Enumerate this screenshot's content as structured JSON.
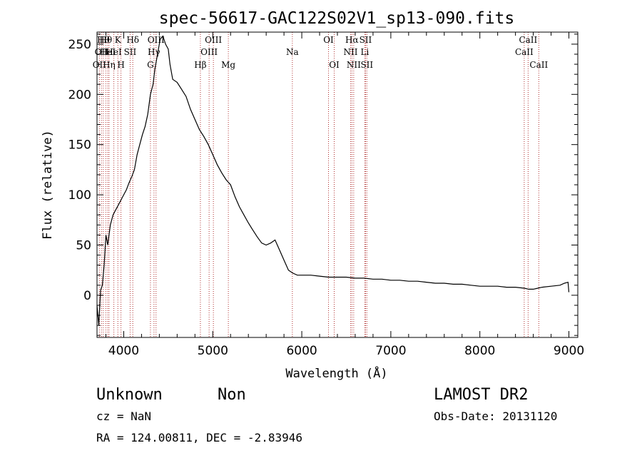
{
  "chart_data": {
    "type": "line",
    "title": "spec-56617-GAC122S02V1_sp13-090.fits",
    "xlabel": "Wavelength (Å)",
    "ylabel": "Flux (relative)",
    "xlim": [
      3700,
      9100
    ],
    "ylim": [
      -42,
      262
    ],
    "xticks": [
      4000,
      5000,
      6000,
      7000,
      8000,
      9000
    ],
    "yticks": [
      0,
      50,
      100,
      150,
      200,
      250
    ],
    "grid": false,
    "series": [
      {
        "x": [
          3700,
          3720,
          3740,
          3760,
          3780,
          3800,
          3820,
          3850,
          3880,
          3910,
          3940,
          3970,
          4000,
          4030,
          4060,
          4090,
          4120,
          4150,
          4180,
          4210,
          4240,
          4270,
          4300,
          4330,
          4350,
          4370,
          4390,
          4410,
          4440,
          4470,
          4500,
          4520,
          4550,
          4600,
          4650,
          4700,
          4750,
          4800,
          4850,
          4900,
          4950,
          5000,
          5050,
          5100,
          5150,
          5200,
          5250,
          5300,
          5350,
          5400,
          5450,
          5500,
          5550,
          5600,
          5650,
          5700,
          5750,
          5800,
          5850,
          5900,
          5950,
          6000,
          6100,
          6200,
          6300,
          6400,
          6500,
          6600,
          6700,
          6800,
          6900,
          7000,
          7100,
          7200,
          7300,
          7400,
          7500,
          7600,
          7700,
          7800,
          7900,
          8000,
          8100,
          8200,
          8300,
          8400,
          8500,
          8550,
          8600,
          8650,
          8700,
          8800,
          8900,
          8950,
          8990,
          9000
        ],
        "y": [
          -10,
          -30,
          5,
          10,
          30,
          60,
          50,
          70,
          80,
          85,
          90,
          95,
          100,
          105,
          112,
          118,
          125,
          140,
          150,
          160,
          168,
          180,
          200,
          210,
          225,
          235,
          245,
          255,
          258,
          250,
          245,
          230,
          215,
          212,
          205,
          198,
          185,
          175,
          165,
          158,
          150,
          140,
          130,
          122,
          115,
          110,
          98,
          88,
          80,
          72,
          65,
          58,
          52,
          50,
          52,
          55,
          45,
          35,
          25,
          22,
          20,
          20,
          20,
          19,
          18,
          18,
          18,
          17,
          17,
          16,
          16,
          15,
          15,
          14,
          14,
          13,
          12,
          12,
          11,
          11,
          10,
          9,
          9,
          9,
          8,
          8,
          7,
          6,
          6,
          7,
          8,
          9,
          10,
          12,
          13,
          3
        ]
      }
    ],
    "lines": [
      {
        "w": 3727,
        "label": "OII",
        "row": 2
      },
      {
        "w": 3750,
        "label": "OII",
        "row": 1
      },
      {
        "w": 3771,
        "label": "Hθ",
        "row": 0
      },
      {
        "w": 3798,
        "label": "Hθ",
        "row": 0
      },
      {
        "w": 3820,
        "label": "HeI",
        "row": 1
      },
      {
        "w": 3835,
        "label": "Hη",
        "row": 2
      },
      {
        "w": 3889,
        "label": "HeI",
        "row": 1
      },
      {
        "w": 3934,
        "label": "K",
        "row": 0
      },
      {
        "w": 3969,
        "label": "H",
        "row": 2
      },
      {
        "w": 4072,
        "label": "SII",
        "row": 1
      },
      {
        "w": 4102,
        "label": "Hδ",
        "row": 0
      },
      {
        "w": 4300,
        "label": "G",
        "row": 2
      },
      {
        "w": 4340,
        "label": "Hγ",
        "row": 1
      },
      {
        "w": 4363,
        "label": "OIII",
        "row": 0
      },
      {
        "w": 4861,
        "label": "Hβ",
        "row": 2
      },
      {
        "w": 4959,
        "label": "OIII",
        "row": 1
      },
      {
        "w": 5007,
        "label": "OIII",
        "row": 0
      },
      {
        "w": 5175,
        "label": "Mg",
        "row": 2
      },
      {
        "w": 5894,
        "label": "Na",
        "row": 1
      },
      {
        "w": 6300,
        "label": "OI",
        "row": 0
      },
      {
        "w": 6364,
        "label": "OI",
        "row": 2
      },
      {
        "w": 6548,
        "label": "NII",
        "row": 1
      },
      {
        "w": 6563,
        "label": "Hα",
        "row": 0
      },
      {
        "w": 6583,
        "label": "NII",
        "row": 2
      },
      {
        "w": 6708,
        "label": "Li",
        "row": 1
      },
      {
        "w": 6716,
        "label": "SII",
        "row": 0
      },
      {
        "w": 6731,
        "label": "SII",
        "row": 2
      },
      {
        "w": 8498,
        "label": "CaII",
        "row": 1
      },
      {
        "w": 8542,
        "label": "CaII",
        "row": 0
      },
      {
        "w": 8662,
        "label": "CaII",
        "row": 2
      }
    ]
  },
  "info": {
    "class_label": "Unknown",
    "subclass_label": "Non",
    "cz": "cz = NaN",
    "coords": "RA = 124.00811, DEC =  -2.83946",
    "survey": "LAMOST DR2",
    "obs_date": "Obs-Date: 20131120"
  }
}
